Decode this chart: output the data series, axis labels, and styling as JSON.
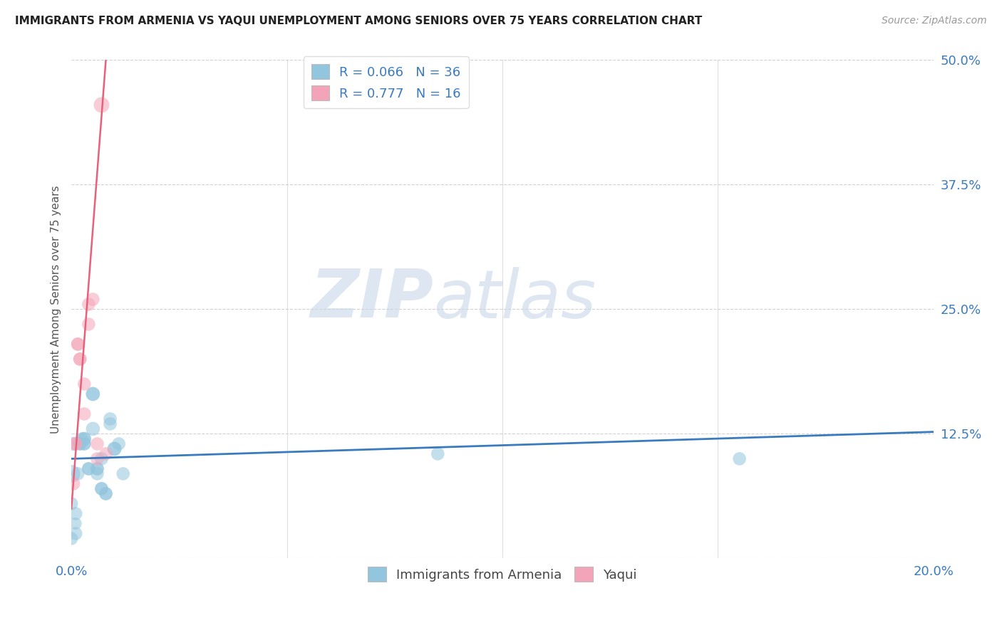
{
  "title": "IMMIGRANTS FROM ARMENIA VS YAQUI UNEMPLOYMENT AMONG SENIORS OVER 75 YEARS CORRELATION CHART",
  "source": "Source: ZipAtlas.com",
  "ylabel": "Unemployment Among Seniors over 75 years",
  "xlim": [
    0.0,
    0.2
  ],
  "ylim": [
    0.0,
    0.5
  ],
  "xticks": [
    0.0,
    0.05,
    0.1,
    0.15,
    0.2
  ],
  "xtick_labels": [
    "0.0%",
    "",
    "",
    "",
    "20.0%"
  ],
  "yticks": [
    0.0,
    0.125,
    0.25,
    0.375,
    0.5
  ],
  "ytick_labels": [
    "",
    "12.5%",
    "25.0%",
    "37.5%",
    "50.0%"
  ],
  "color_blue": "#92c5de",
  "color_pink": "#f4a4b8",
  "color_blue_line": "#3a7bbf",
  "color_pink_line": "#e8607a",
  "color_text_blue": "#3a7bbf",
  "watermark_zip": "ZIP",
  "watermark_atlas": "atlas",
  "armenia_x": [
    0.0005,
    0.001,
    0.0015,
    0.002,
    0.002,
    0.0025,
    0.003,
    0.003,
    0.003,
    0.003,
    0.004,
    0.004,
    0.005,
    0.005,
    0.005,
    0.006,
    0.006,
    0.006,
    0.007,
    0.007,
    0.007,
    0.008,
    0.008,
    0.009,
    0.009,
    0.01,
    0.01,
    0.011,
    0.012,
    0.0,
    0.0,
    0.0,
    0.001,
    0.001,
    0.085,
    0.155
  ],
  "armenia_y": [
    0.115,
    0.035,
    0.085,
    0.115,
    0.115,
    0.12,
    0.115,
    0.115,
    0.12,
    0.12,
    0.09,
    0.09,
    0.13,
    0.165,
    0.165,
    0.09,
    0.09,
    0.085,
    0.1,
    0.07,
    0.07,
    0.065,
    0.065,
    0.135,
    0.14,
    0.11,
    0.11,
    0.115,
    0.085,
    0.085,
    0.055,
    0.02,
    0.045,
    0.025,
    0.105,
    0.1
  ],
  "armenia_size": [
    200,
    150,
    180,
    180,
    180,
    180,
    180,
    180,
    180,
    200,
    180,
    180,
    200,
    200,
    200,
    180,
    180,
    180,
    180,
    180,
    180,
    180,
    180,
    180,
    180,
    200,
    200,
    180,
    180,
    320,
    180,
    180,
    180,
    180,
    180,
    180
  ],
  "yaqui_x": [
    0.0005,
    0.001,
    0.001,
    0.0015,
    0.0015,
    0.002,
    0.002,
    0.003,
    0.003,
    0.004,
    0.004,
    0.005,
    0.006,
    0.006,
    0.007,
    0.008
  ],
  "yaqui_y": [
    0.075,
    0.115,
    0.115,
    0.215,
    0.215,
    0.2,
    0.2,
    0.145,
    0.175,
    0.255,
    0.235,
    0.26,
    0.115,
    0.1,
    0.455,
    0.105
  ],
  "yaqui_size": [
    180,
    180,
    180,
    180,
    180,
    180,
    180,
    180,
    180,
    180,
    180,
    180,
    180,
    180,
    250,
    180
  ],
  "blue_line_x0": 0.0,
  "blue_line_x1": 0.2,
  "blue_line_y0": 0.1,
  "blue_line_y1": 0.127,
  "pink_line_x0": 0.0,
  "pink_line_x1": 0.008,
  "pink_line_y0": 0.05,
  "pink_line_y1": 0.5
}
